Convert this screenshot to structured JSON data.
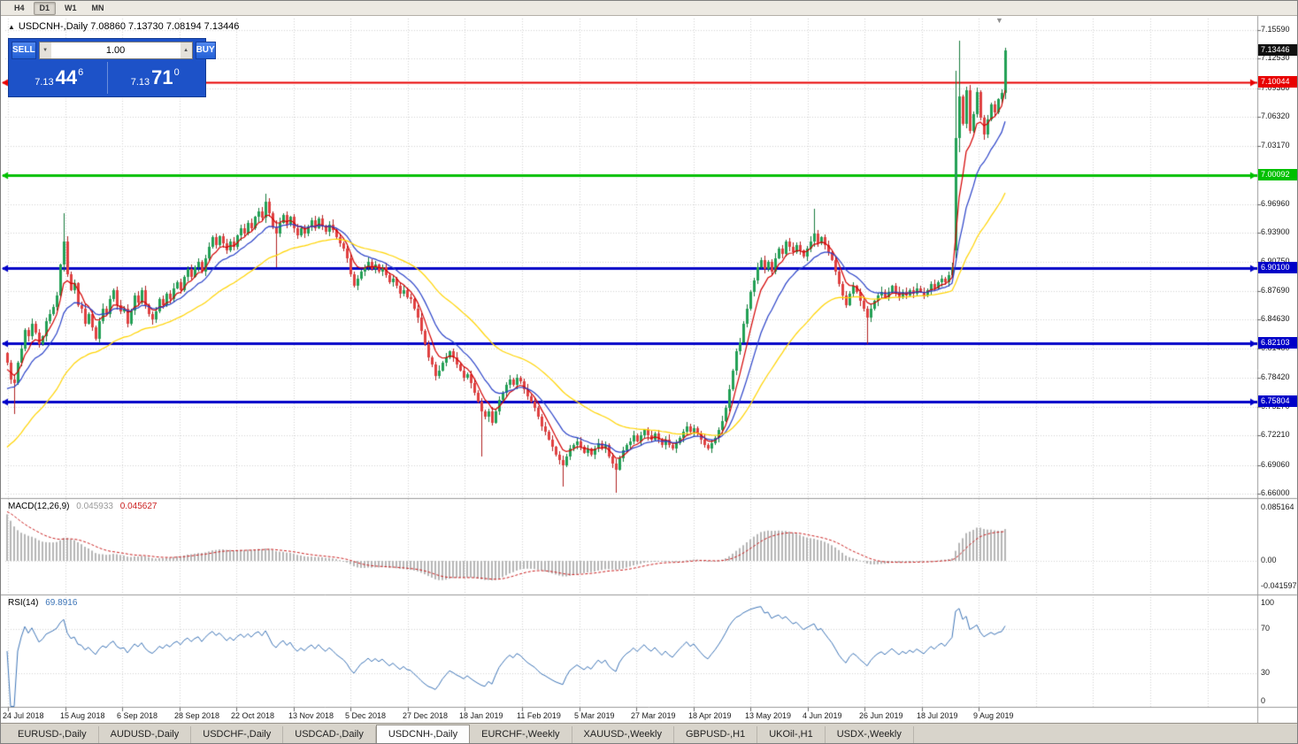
{
  "toolbar": {
    "timeframes": [
      {
        "label": "H4",
        "active": false
      },
      {
        "label": "D1",
        "active": true
      },
      {
        "label": "W1",
        "active": false
      },
      {
        "label": "MN",
        "active": false
      }
    ]
  },
  "icons": {
    "collapse": "▲",
    "shift_marker": "▼",
    "volume_down": "▼",
    "volume_up": "▲"
  },
  "chart_header": {
    "title_line": "USDCNH-,Daily 7.08860 7.13730 7.08194 7.13446"
  },
  "one_click": {
    "sell_label": "SELL",
    "buy_label": "BUY",
    "volume_value": "1.00",
    "sell_price": {
      "main": "7.13",
      "pips": "44",
      "point": "6"
    },
    "buy_price": {
      "main": "7.13",
      "pips": "71",
      "point": "0"
    }
  },
  "macd_panel": {
    "name": "MACD(12,26,9)",
    "value_main": "0.045933",
    "value_signal": "0.045627",
    "axis_labels": [
      "0.085164",
      "0.00",
      "-0.041597"
    ]
  },
  "rsi_panel": {
    "name": "RSI(14)",
    "value": "69.8916",
    "axis_labels": [
      "100",
      "70",
      "30",
      "0"
    ]
  },
  "date_axis": {
    "labels": [
      "24 Jul 2018",
      "15 Aug 2018",
      "6 Sep 2018",
      "28 Sep 2018",
      "22 Oct 2018",
      "13 Nov 2018",
      "5 Dec 2018",
      "27 Dec 2018",
      "18 Jan 2019",
      "11 Feb 2019",
      "5 Mar 2019",
      "27 Mar 2019",
      "18 Apr 2019",
      "13 May 2019",
      "4 Jun 2019",
      "26 Jun 2019",
      "18 Jul 2019",
      "9 Aug 2019"
    ]
  },
  "tab_bar": {
    "tabs": [
      {
        "label": "EURUSD-,Daily",
        "active": false
      },
      {
        "label": "AUDUSD-,Daily",
        "active": false
      },
      {
        "label": "USDCHF-,Daily",
        "active": false
      },
      {
        "label": "USDCAD-,Daily",
        "active": false
      },
      {
        "label": "USDCNH-,Daily",
        "active": true
      },
      {
        "label": "EURCHF-,Weekly",
        "active": false
      },
      {
        "label": "XAUUSD-,Weekly",
        "active": false
      },
      {
        "label": "GBPUSD-,H1",
        "active": false
      },
      {
        "label": "UKOil-,H1",
        "active": false
      },
      {
        "label": "USDX-,Weekly",
        "active": false
      }
    ]
  },
  "chart_data": {
    "type": "candlestick",
    "title": "USDCNH-,Daily",
    "last_candle": {
      "open": 7.0886,
      "high": 7.1373,
      "low": 7.08194,
      "close": 7.13446
    },
    "current_price": 7.13446,
    "price_range": [
      6.66,
      7.1559
    ],
    "price_ticks": [
      7.1559,
      7.1253,
      7.0938,
      7.0632,
      7.0317,
      6.9696,
      6.939,
      6.9075,
      6.8769,
      6.8463,
      6.8148,
      6.7842,
      6.7527,
      6.7221,
      6.6906,
      6.66
    ],
    "horizontal_levels": [
      {
        "price": 7.10044,
        "color": "#e80000",
        "width": 2
      },
      {
        "price": 7.00092,
        "color": "#00c000",
        "width": 3
      },
      {
        "price": 6.901,
        "color": "#0000c8",
        "width": 3
      },
      {
        "price": 6.82103,
        "color": "#0000c8",
        "width": 3
      },
      {
        "price": 6.75804,
        "color": "#0000c8",
        "width": 3
      }
    ],
    "moving_averages": [
      {
        "period": 6,
        "color": "#d40000",
        "init": 6.79
      },
      {
        "period": 14,
        "color": "#2840c8",
        "init": 6.768
      },
      {
        "period": 40,
        "color": "#ffd400",
        "init": 6.705
      }
    ],
    "macd": {
      "fast": 12,
      "slow": 26,
      "signal_period": 9,
      "seed_fast": 6.85,
      "seed_slow": 6.765,
      "seed_signal": 0.08,
      "last_main": 0.045933,
      "last_signal": 0.045627,
      "axis_max": 0.085164,
      "axis_min": -0.041597,
      "hist_color": "#b6b6b6",
      "signal_color": "#cc2222"
    },
    "rsi": {
      "period": 14,
      "last_value": 69.8916,
      "levels": [
        30,
        70
      ],
      "color": "#3f76b8"
    },
    "candle_up_color": "#22a055",
    "candle_down_color": "#e04040",
    "wick_up_color": "#157a3c",
    "wick_down_color": "#b02020",
    "first_open": 6.81,
    "closes": [
      6.8,
      6.782,
      6.778,
      6.8,
      6.815,
      6.835,
      6.828,
      6.842,
      6.832,
      6.82,
      6.828,
      6.845,
      6.852,
      6.86,
      6.872,
      6.905,
      6.93,
      6.895,
      6.878,
      6.885,
      6.862,
      6.858,
      6.842,
      6.852,
      6.838,
      6.826,
      6.845,
      6.858,
      6.852,
      6.868,
      6.878,
      6.862,
      6.855,
      6.858,
      6.842,
      6.856,
      6.872,
      6.864,
      6.878,
      6.862,
      6.852,
      6.846,
      6.855,
      6.868,
      6.862,
      6.874,
      6.868,
      6.88,
      6.886,
      6.878,
      6.892,
      6.9,
      6.892,
      6.902,
      6.908,
      6.898,
      6.912,
      6.924,
      6.934,
      6.926,
      6.935,
      6.928,
      6.92,
      6.93,
      6.924,
      6.936,
      6.944,
      6.938,
      6.95,
      6.944,
      6.956,
      6.962,
      6.955,
      6.972,
      6.96,
      6.945,
      6.938,
      6.95,
      6.958,
      6.948,
      6.956,
      6.944,
      6.936,
      6.944,
      6.938,
      6.946,
      6.952,
      6.944,
      6.954,
      6.946,
      6.94,
      6.948,
      6.942,
      6.934,
      6.928,
      6.922,
      6.912,
      6.895,
      6.882,
      6.89,
      6.898,
      6.902,
      6.908,
      6.9,
      6.905,
      6.898,
      6.902,
      6.894,
      6.886,
      6.89,
      6.882,
      6.874,
      6.878,
      6.87,
      6.868,
      6.858,
      6.848,
      6.834,
      6.82,
      6.806,
      6.798,
      6.786,
      6.792,
      6.8,
      6.806,
      6.812,
      6.806,
      6.798,
      6.792,
      6.784,
      6.788,
      6.778,
      6.768,
      6.758,
      6.748,
      6.742,
      6.748,
      6.736,
      6.748,
      6.76,
      6.768,
      6.776,
      6.782,
      6.776,
      6.784,
      6.78,
      6.772,
      6.764,
      6.758,
      6.752,
      6.742,
      6.732,
      6.726,
      6.718,
      6.71,
      6.702,
      6.696,
      6.69,
      6.7,
      6.708,
      6.712,
      6.716,
      6.71,
      6.704,
      6.708,
      6.702,
      6.708,
      6.714,
      6.708,
      6.712,
      6.7,
      6.692,
      6.686,
      6.698,
      6.706,
      6.712,
      6.716,
      6.722,
      6.716,
      6.722,
      6.728,
      6.722,
      6.718,
      6.724,
      6.718,
      6.712,
      6.718,
      6.712,
      6.708,
      6.714,
      6.72,
      6.726,
      6.732,
      6.726,
      6.73,
      6.724,
      6.718,
      6.712,
      6.708,
      6.714,
      6.72,
      6.728,
      6.738,
      6.752,
      6.772,
      6.792,
      6.812,
      6.822,
      6.842,
      6.858,
      6.876,
      6.888,
      6.902,
      6.91,
      6.9,
      6.908,
      6.898,
      6.912,
      6.922,
      6.916,
      6.93,
      6.924,
      6.918,
      6.926,
      6.92,
      6.914,
      6.922,
      6.93,
      6.938,
      6.928,
      6.934,
      6.926,
      6.918,
      6.91,
      6.898,
      6.884,
      6.872,
      6.862,
      6.874,
      6.882,
      6.876,
      6.866,
      6.858,
      6.848,
      6.858,
      6.866,
      6.872,
      6.876,
      6.87,
      6.876,
      6.882,
      6.876,
      6.87,
      6.876,
      6.872,
      6.878,
      6.874,
      6.88,
      6.876,
      6.872,
      6.878,
      6.884,
      6.88,
      6.886,
      6.89,
      6.886,
      6.894,
      6.902,
      7.04,
      7.085,
      7.056,
      7.092,
      7.048,
      7.066,
      7.09,
      7.062,
      7.044,
      7.06,
      7.076,
      7.068,
      7.082,
      7.089,
      7.13446
    ],
    "ohlc_overrides": {
      "2": [
        6.782,
        6.788,
        6.745,
        6.778
      ],
      "16": [
        6.905,
        6.96,
        6.898,
        6.93
      ],
      "73": [
        6.955,
        6.981,
        6.95,
        6.972
      ],
      "76": [
        6.945,
        6.952,
        6.902,
        6.938
      ],
      "134": [
        6.758,
        6.762,
        6.7,
        6.748
      ],
      "157": [
        6.696,
        6.701,
        6.668,
        6.69
      ],
      "172": [
        6.692,
        6.697,
        6.661,
        6.686
      ],
      "228": [
        6.93,
        6.965,
        6.924,
        6.938
      ],
      "243": [
        6.858,
        6.861,
        6.82,
        6.848
      ],
      "268": [
        6.92,
        7.112,
        6.912,
        7.04
      ],
      "269": [
        7.04,
        7.145,
        7.025,
        7.085
      ],
      "282": [
        7.0886,
        7.1373,
        7.08194,
        7.13446
      ]
    }
  }
}
